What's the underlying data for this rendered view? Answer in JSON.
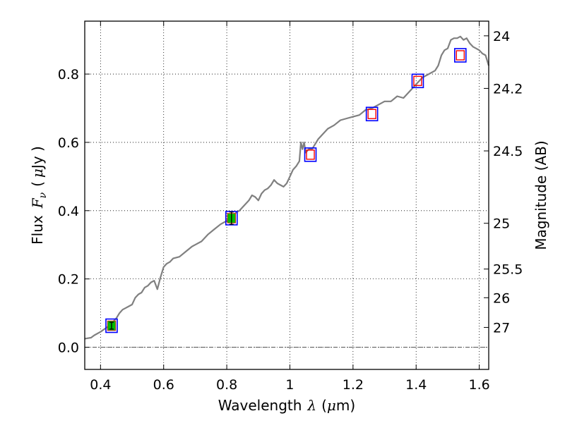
{
  "chart_data": {
    "type": "line",
    "xlabel": "Wavelength  λ (μm)",
    "xlabel_parts": [
      "Wavelength",
      "λ",
      "(",
      "μ",
      "m)"
    ],
    "ylabel": "Flux  Fν ( μJy )",
    "ylabel_parts": [
      "Flux",
      "F",
      "ν",
      "(",
      "μ",
      "Jy )"
    ],
    "y2label": "Magnitude (AB)",
    "xlim": [
      0.35,
      1.63
    ],
    "ylim": [
      -0.065,
      0.955
    ],
    "grid": true,
    "grid_style": "dotted",
    "x_ticks": [
      0.4,
      0.6,
      0.8,
      1.0,
      1.2,
      1.4,
      1.6
    ],
    "x_tick_labels": [
      "0.4",
      "0.6",
      "0.8",
      "1",
      "1.2",
      "1.4",
      "1.6"
    ],
    "y_ticks": [
      0.0,
      0.2,
      0.4,
      0.6,
      0.8
    ],
    "y_tick_labels": [
      "0.0",
      "0.2",
      "0.4",
      "0.6",
      "0.8"
    ],
    "y2_ticks": [
      {
        "label": "24",
        "flux": 0.912
      },
      {
        "label": "24.2",
        "flux": 0.758
      },
      {
        "label": "24.5",
        "flux": 0.575
      },
      {
        "label": "25",
        "flux": 0.363
      },
      {
        "label": "25.5",
        "flux": 0.229
      },
      {
        "label": "26",
        "flux": 0.145
      },
      {
        "label": "27",
        "flux": 0.058
      }
    ],
    "zero_line": 0.0,
    "colors": {
      "spectrum": "#808080",
      "box_outline": "#0000ff",
      "model_marker": "#ff0000",
      "detection_fill": "#00bb00",
      "zero_line": "#555555"
    },
    "series": [
      {
        "name": "spectrum",
        "x": [
          0.35,
          0.37,
          0.38,
          0.4,
          0.42,
          0.43,
          0.44,
          0.45,
          0.46,
          0.47,
          0.48,
          0.49,
          0.5,
          0.51,
          0.52,
          0.53,
          0.54,
          0.55,
          0.56,
          0.57,
          0.58,
          0.59,
          0.595,
          0.6,
          0.61,
          0.62,
          0.63,
          0.65,
          0.67,
          0.69,
          0.7,
          0.72,
          0.74,
          0.76,
          0.78,
          0.79,
          0.8,
          0.81,
          0.82,
          0.83,
          0.84,
          0.85,
          0.86,
          0.87,
          0.88,
          0.89,
          0.9,
          0.91,
          0.92,
          0.93,
          0.94,
          0.95,
          0.96,
          0.97,
          0.98,
          0.99,
          1.0,
          1.01,
          1.02,
          1.03,
          1.035,
          1.04,
          1.045,
          1.05,
          1.06,
          1.07,
          1.08,
          1.09,
          1.1,
          1.12,
          1.14,
          1.16,
          1.18,
          1.2,
          1.22,
          1.24,
          1.26,
          1.28,
          1.3,
          1.32,
          1.34,
          1.36,
          1.38,
          1.4,
          1.42,
          1.44,
          1.46,
          1.47,
          1.48,
          1.49,
          1.5,
          1.51,
          1.52,
          1.53,
          1.54,
          1.55,
          1.56,
          1.57,
          1.58,
          1.59,
          1.6,
          1.61,
          1.62,
          1.63
        ],
        "y": [
          0.025,
          0.028,
          0.035,
          0.045,
          0.058,
          0.065,
          0.075,
          0.085,
          0.1,
          0.11,
          0.115,
          0.12,
          0.125,
          0.145,
          0.155,
          0.16,
          0.175,
          0.18,
          0.19,
          0.195,
          0.17,
          0.205,
          0.22,
          0.235,
          0.245,
          0.25,
          0.26,
          0.265,
          0.28,
          0.295,
          0.3,
          0.31,
          0.33,
          0.345,
          0.36,
          0.365,
          0.37,
          0.38,
          0.385,
          0.395,
          0.4,
          0.41,
          0.42,
          0.43,
          0.445,
          0.44,
          0.43,
          0.45,
          0.46,
          0.465,
          0.475,
          0.49,
          0.48,
          0.475,
          0.47,
          0.48,
          0.5,
          0.52,
          0.53,
          0.545,
          0.6,
          0.58,
          0.6,
          0.57,
          0.58,
          0.58,
          0.595,
          0.61,
          0.62,
          0.64,
          0.65,
          0.665,
          0.67,
          0.675,
          0.68,
          0.695,
          0.7,
          0.71,
          0.72,
          0.72,
          0.735,
          0.73,
          0.75,
          0.77,
          0.79,
          0.8,
          0.81,
          0.825,
          0.855,
          0.87,
          0.875,
          0.9,
          0.905,
          0.905,
          0.91,
          0.9,
          0.905,
          0.89,
          0.88,
          0.875,
          0.87,
          0.86,
          0.855,
          0.825
        ]
      },
      {
        "name": "model_photometry",
        "x": [
          0.435,
          0.815,
          1.065,
          1.26,
          1.405,
          1.54
        ],
        "y": [
          0.063,
          0.378,
          0.564,
          0.683,
          0.78,
          0.855
        ]
      },
      {
        "name": "detections",
        "x": [
          0.435,
          0.815
        ],
        "y": [
          0.063,
          0.378
        ],
        "yerr": [
          0.01,
          0.018
        ]
      }
    ]
  }
}
